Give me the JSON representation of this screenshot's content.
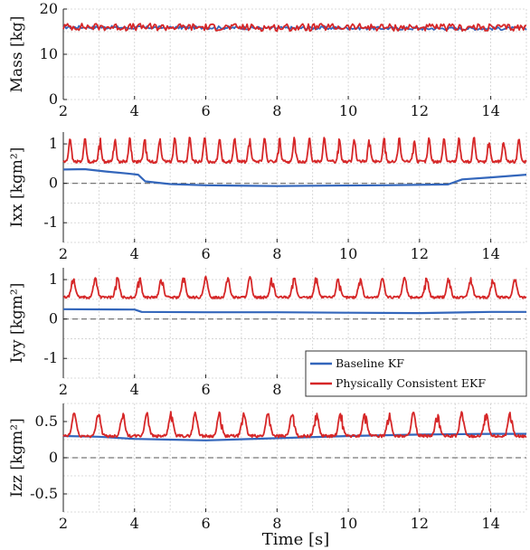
{
  "colors": {
    "baseline": "#3366bb",
    "pce": "#d62728",
    "grid": "#cfcfcf",
    "zero_line": "#777777"
  },
  "legend": {
    "placement": "bottom-right of last panel",
    "entries": [
      {
        "label": "Baseline KF",
        "color": "#3366bb"
      },
      {
        "label": "Physically Consistent EKF",
        "color": "#d62728"
      }
    ]
  },
  "xlabel": "Time [s]",
  "chart_data": [
    {
      "type": "line",
      "ylabel": "Mass [kg]",
      "xlim": [
        2,
        15
      ],
      "ylim": [
        0,
        20
      ],
      "xticks": [
        "2",
        "4",
        "6",
        "8",
        "10",
        "12",
        "14"
      ],
      "yticks": [
        "0",
        "10",
        "20"
      ],
      "grid": true,
      "zero_line": false,
      "series": [
        {
          "name": "Baseline KF",
          "color": "#3366bb",
          "pattern": "noise",
          "x": [
            2,
            4,
            6,
            8,
            10,
            12,
            14,
            15
          ],
          "y": [
            16.0,
            15.9,
            15.9,
            15.8,
            15.8,
            15.7,
            15.7,
            15.7
          ],
          "amplitude": 0.35
        },
        {
          "name": "Physically Consistent EKF",
          "color": "#d62728",
          "pattern": "noise",
          "x": [
            2,
            4,
            6,
            8,
            10,
            12,
            14,
            15
          ],
          "y": [
            16.1,
            16.0,
            16.0,
            15.9,
            16.0,
            15.9,
            15.9,
            15.9
          ],
          "amplitude": 0.8
        }
      ]
    },
    {
      "type": "line",
      "ylabel": "Ixx [kgm²]",
      "xlim": [
        2,
        15
      ],
      "ylim": [
        -1.5,
        1.3
      ],
      "xticks": [
        "2",
        "4",
        "6",
        "8",
        "10",
        "12",
        "14"
      ],
      "yticks": [
        "-1",
        "0",
        "1"
      ],
      "grid": true,
      "zero_line": true,
      "series": [
        {
          "name": "Baseline KF",
          "color": "#3366bb",
          "pattern": "steps",
          "x": [
            2.0,
            2.6,
            3.2,
            3.8,
            4.1,
            4.3,
            5.0,
            6.0,
            8.0,
            9.0,
            11.0,
            12.8,
            13.2,
            14.0,
            15.0
          ],
          "y": [
            0.35,
            0.36,
            0.3,
            0.25,
            0.22,
            0.05,
            -0.02,
            -0.05,
            -0.07,
            -0.06,
            -0.05,
            -0.03,
            0.1,
            0.15,
            0.22
          ]
        },
        {
          "name": "Physically Consistent EKF",
          "color": "#d62728",
          "pattern": "periodic",
          "x_start": 2,
          "x_end": 15,
          "period": 0.42,
          "base": 0.55,
          "peak": 1.15
        }
      ]
    },
    {
      "type": "line",
      "ylabel": "Iyy [kgm²]",
      "xlim": [
        2,
        15
      ],
      "ylim": [
        -1.5,
        1.3
      ],
      "xticks": [
        "2",
        "4",
        "6",
        "8",
        "10",
        "12",
        "14"
      ],
      "yticks": [
        "-1",
        "0",
        "1"
      ],
      "grid": true,
      "zero_line": true,
      "series": [
        {
          "name": "Baseline KF",
          "color": "#3366bb",
          "pattern": "steps",
          "x": [
            2.0,
            4.0,
            4.2,
            6.0,
            8.0,
            10.0,
            12.0,
            14.0,
            15.0
          ],
          "y": [
            0.25,
            0.24,
            0.18,
            0.17,
            0.17,
            0.16,
            0.15,
            0.18,
            0.18
          ]
        },
        {
          "name": "Physically Consistent EKF",
          "color": "#d62728",
          "pattern": "periodic",
          "x_start": 2,
          "x_end": 15,
          "period": 0.62,
          "base": 0.55,
          "peak": 1.05
        }
      ]
    },
    {
      "type": "line",
      "ylabel": "Izz [kgm²]",
      "xlim": [
        2,
        15
      ],
      "ylim": [
        -0.75,
        0.75
      ],
      "xticks": [
        "2",
        "4",
        "6",
        "8",
        "10",
        "12",
        "14"
      ],
      "yticks": [
        "-0.5",
        "0",
        "0.5"
      ],
      "grid": true,
      "zero_line": true,
      "series": [
        {
          "name": "Baseline KF",
          "color": "#3366bb",
          "pattern": "steps",
          "x": [
            2.0,
            3.0,
            4.0,
            5.0,
            6.0,
            8.0,
            10.0,
            12.0,
            14.0,
            15.0
          ],
          "y": [
            0.3,
            0.29,
            0.26,
            0.25,
            0.24,
            0.27,
            0.3,
            0.32,
            0.33,
            0.33
          ]
        },
        {
          "name": "Physically Consistent EKF",
          "color": "#d62728",
          "pattern": "periodic",
          "x_start": 2,
          "x_end": 15,
          "period": 0.68,
          "base": 0.3,
          "peak": 0.62
        }
      ]
    }
  ]
}
